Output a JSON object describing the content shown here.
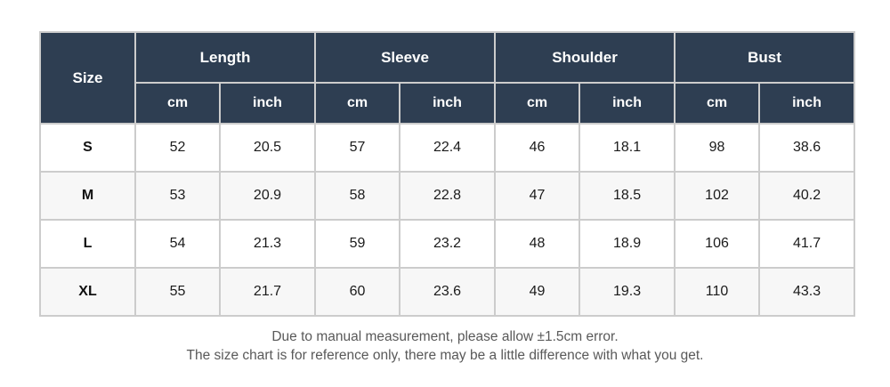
{
  "table": {
    "size_header": "Size",
    "groups": [
      "Length",
      "Sleeve",
      "Shoulder",
      "Bust"
    ],
    "units": [
      "cm",
      "inch",
      "cm",
      "inch",
      "cm",
      "inch",
      "cm",
      "inch"
    ],
    "rows": [
      {
        "size": "S",
        "values": [
          "52",
          "20.5",
          "57",
          "22.4",
          "46",
          "18.1",
          "98",
          "38.6"
        ]
      },
      {
        "size": "M",
        "values": [
          "53",
          "20.9",
          "58",
          "22.8",
          "47",
          "18.5",
          "102",
          "40.2"
        ]
      },
      {
        "size": "L",
        "values": [
          "54",
          "21.3",
          "59",
          "23.2",
          "48",
          "18.9",
          "106",
          "41.7"
        ]
      },
      {
        "size": "XL",
        "values": [
          "55",
          "21.7",
          "60",
          "23.6",
          "49",
          "19.3",
          "110",
          "43.3"
        ]
      }
    ]
  },
  "footer": {
    "line1": "Due to manual measurement, please allow ±1.5cm error.",
    "line2": "The size chart is for reference only, there may be a little difference with what you get."
  },
  "colors": {
    "header_bg": "#2e3e52",
    "header_text": "#ffffff",
    "alt_row_bg": "#f7f7f7",
    "border": "#cccccc",
    "footer_text": "#595959"
  }
}
